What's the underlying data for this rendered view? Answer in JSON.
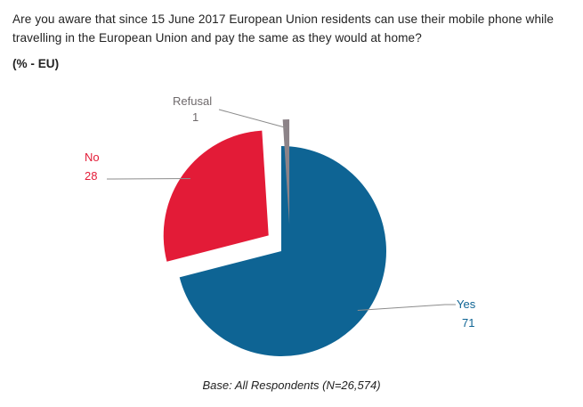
{
  "question": "Are you aware that since 15 June 2017 European Union residents can use their mobile phone while travelling in the European Union and pay the same as they would at home?",
  "unit": "(% - EU)",
  "base_note": "Base: All Respondents (N=26,574)",
  "chart_data": {
    "type": "pie",
    "title": "Are you aware that since 15 June 2017 European Union residents can use their mobile phone while travelling in the European Union and pay the same as they would at home?",
    "subtitle": "(% - EU)",
    "categories": [
      "Yes",
      "No",
      "Refusal"
    ],
    "values": [
      71,
      28,
      1
    ],
    "colors": [
      "#0e6494",
      "#e31b37",
      "#8c8388"
    ],
    "label_colors": [
      "#0e6494",
      "#e31b37",
      "#6f6a6c"
    ],
    "exploded": [
      "No",
      "Refusal"
    ]
  }
}
